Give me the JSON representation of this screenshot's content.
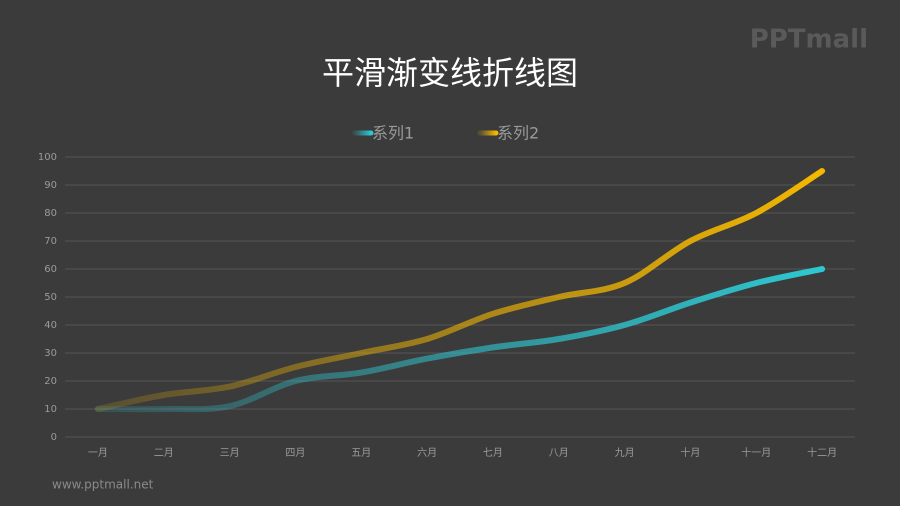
{
  "watermark": "PPTmall",
  "footer": "www.pptmall.net",
  "chart_data": {
    "type": "line",
    "title": "平滑渐变线折线图",
    "categories": [
      "一月",
      "二月",
      "三月",
      "四月",
      "五月",
      "六月",
      "七月",
      "八月",
      "九月",
      "十月",
      "十一月",
      "十二月"
    ],
    "series": [
      {
        "name": "系列1",
        "color": "#2ec8d2",
        "values": [
          10,
          10,
          11,
          20,
          23,
          28,
          32,
          35,
          40,
          48,
          55,
          60
        ]
      },
      {
        "name": "系列2",
        "color": "#f5b800",
        "values": [
          10,
          15,
          18,
          25,
          30,
          35,
          44,
          50,
          55,
          70,
          80,
          95
        ]
      }
    ],
    "ylim": [
      0,
      100
    ],
    "yticks": [
      0,
      10,
      20,
      30,
      40,
      50,
      60,
      70,
      80,
      90,
      100
    ],
    "grid": true,
    "legend": "top"
  }
}
